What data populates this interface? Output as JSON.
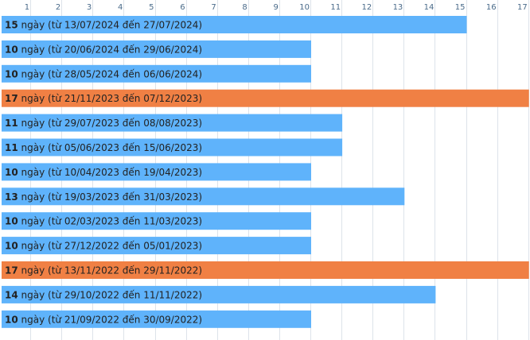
{
  "chart_data": {
    "type": "bar",
    "orientation": "horizontal",
    "xlim": [
      0,
      17
    ],
    "x_ticks": [
      1,
      2,
      3,
      4,
      5,
      6,
      7,
      8,
      9,
      10,
      11,
      12,
      13,
      14,
      15,
      16,
      17
    ],
    "grid": true,
    "colors": {
      "normal": "#5fb3fb",
      "max": "#f08044"
    },
    "unit": "ngày",
    "bars": [
      {
        "value": 15,
        "start": "13/07/2024",
        "end": "27/07/2024",
        "highlight": false
      },
      {
        "value": 10,
        "start": "20/06/2024",
        "end": "29/06/2024",
        "highlight": false
      },
      {
        "value": 10,
        "start": "28/05/2024",
        "end": "06/06/2024",
        "highlight": false
      },
      {
        "value": 17,
        "start": "21/11/2023",
        "end": "07/12/2023",
        "highlight": true
      },
      {
        "value": 11,
        "start": "29/07/2023",
        "end": "08/08/2023",
        "highlight": false
      },
      {
        "value": 11,
        "start": "05/06/2023",
        "end": "15/06/2023",
        "highlight": false
      },
      {
        "value": 10,
        "start": "10/04/2023",
        "end": "19/04/2023",
        "highlight": false
      },
      {
        "value": 13,
        "start": "19/03/2023",
        "end": "31/03/2023",
        "highlight": false
      },
      {
        "value": 10,
        "start": "02/03/2023",
        "end": "11/03/2023",
        "highlight": false
      },
      {
        "value": 10,
        "start": "27/12/2022",
        "end": "05/01/2023",
        "highlight": false
      },
      {
        "value": 17,
        "start": "13/11/2022",
        "end": "29/11/2022",
        "highlight": true
      },
      {
        "value": 14,
        "start": "29/10/2022",
        "end": "11/11/2022",
        "highlight": false
      },
      {
        "value": 10,
        "start": "21/09/2022",
        "end": "30/09/2022",
        "highlight": false
      }
    ]
  }
}
